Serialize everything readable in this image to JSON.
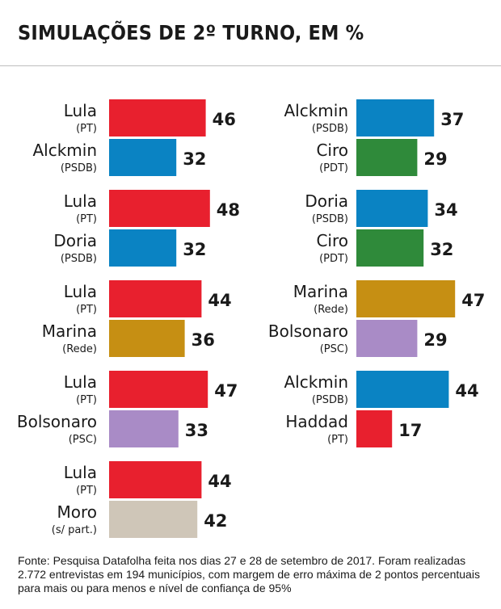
{
  "title": "SIMULAÇÕES DE 2º TURNO, EM %",
  "footer": "Fonte: Pesquisa Datafolha feita nos dias 27 e 28 de setembro de 2017. Foram realizadas 2.772 entrevistas em 194 municípios, com margem de erro máxima de 2 pontos percentuais para mais ou para menos e nível de confiança de 95%",
  "colors": {
    "PT": "#e8202e",
    "PSDB": "#0a83c3",
    "PDT": "#2f8a3a",
    "Rede": "#c68f13",
    "PSC": "#a98bc6",
    "s/ part.": "#cfc6b8"
  },
  "chart_data": {
    "type": "bar",
    "orientation": "horizontal",
    "unit": "%",
    "matchups": [
      {
        "column": "left",
        "candidates": [
          {
            "name": "Lula",
            "party": "(PT)",
            "party_key": "PT",
            "value": 46
          },
          {
            "name": "Alckmin",
            "party": "(PSDB)",
            "party_key": "PSDB",
            "value": 32
          }
        ]
      },
      {
        "column": "left",
        "candidates": [
          {
            "name": "Lula",
            "party": "(PT)",
            "party_key": "PT",
            "value": 48
          },
          {
            "name": "Doria",
            "party": "(PSDB)",
            "party_key": "PSDB",
            "value": 32
          }
        ]
      },
      {
        "column": "left",
        "candidates": [
          {
            "name": "Lula",
            "party": "(PT)",
            "party_key": "PT",
            "value": 44
          },
          {
            "name": "Marina",
            "party": "(Rede)",
            "party_key": "Rede",
            "value": 36
          }
        ]
      },
      {
        "column": "left",
        "candidates": [
          {
            "name": "Lula",
            "party": "(PT)",
            "party_key": "PT",
            "value": 47
          },
          {
            "name": "Bolsonaro",
            "party": "(PSC)",
            "party_key": "PSC",
            "value": 33
          }
        ]
      },
      {
        "column": "left",
        "candidates": [
          {
            "name": "Lula",
            "party": "(PT)",
            "party_key": "PT",
            "value": 44
          },
          {
            "name": "Moro",
            "party": "(s/ part.)",
            "party_key": "s/ part.",
            "value": 42
          }
        ]
      },
      {
        "column": "right",
        "candidates": [
          {
            "name": "Alckmin",
            "party": "(PSDB)",
            "party_key": "PSDB",
            "value": 37
          },
          {
            "name": "Ciro",
            "party": "(PDT)",
            "party_key": "PDT",
            "value": 29
          }
        ]
      },
      {
        "column": "right",
        "candidates": [
          {
            "name": "Doria",
            "party": "(PSDB)",
            "party_key": "PSDB",
            "value": 34
          },
          {
            "name": "Ciro",
            "party": "(PDT)",
            "party_key": "PDT",
            "value": 32
          }
        ]
      },
      {
        "column": "right",
        "candidates": [
          {
            "name": "Marina",
            "party": "(Rede)",
            "party_key": "Rede",
            "value": 47
          },
          {
            "name": "Bolsonaro",
            "party": "(PSC)",
            "party_key": "PSC",
            "value": 29
          }
        ]
      },
      {
        "column": "right",
        "candidates": [
          {
            "name": "Alckmin",
            "party": "(PSDB)",
            "party_key": "PSDB",
            "value": 44
          },
          {
            "name": "Haddad",
            "party": "(PT)",
            "party_key": "PT",
            "value": 17
          }
        ]
      }
    ]
  }
}
